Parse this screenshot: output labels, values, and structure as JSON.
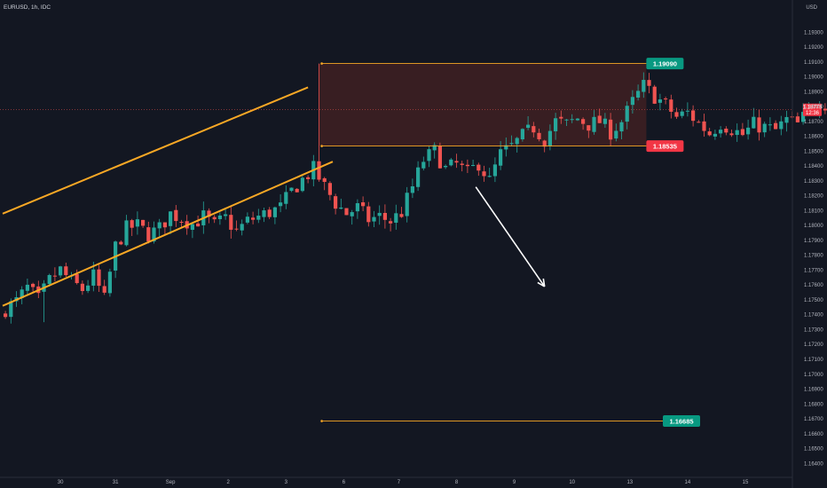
{
  "colors": {
    "background": "#131722",
    "up": "#26a69a",
    "down": "#ef5350",
    "orange": "#f9a825",
    "zone_fill": "#3a1f23",
    "green_tag": "#089981",
    "red_tag": "#f23645",
    "arrow": "#ffffff",
    "axis_text": "#b2b5be"
  },
  "header": {
    "symbol": "EURUSD, 1h, IDC",
    "currency": "USD"
  },
  "chart_data": {
    "type": "candlestick",
    "symbol": "EURUSD",
    "interval": "1h",
    "ylim": [
      1.1633,
      1.1941
    ],
    "y_ticks": [
      "1.19300",
      "1.19200",
      "1.19100",
      "1.19000",
      "1.18900",
      "1.18800",
      "1.18700",
      "1.18600",
      "1.18500",
      "1.18400",
      "1.18300",
      "1.18200",
      "1.18100",
      "1.18000",
      "1.17900",
      "1.17800",
      "1.17700",
      "1.17600",
      "1.17500",
      "1.17400",
      "1.17300",
      "1.17200",
      "1.17100",
      "1.17000",
      "1.16900",
      "1.16800",
      "1.16700",
      "1.16600",
      "1.16500",
      "1.16400"
    ],
    "x_ticks": [
      "30",
      "31",
      "Sep",
      "2",
      "3",
      "6",
      "7",
      "8",
      "9",
      "10",
      "13",
      "14",
      "15"
    ],
    "x_tick_bars": [
      10.5,
      20.5,
      30.5,
      41,
      51.5,
      62,
      72,
      82.5,
      93,
      103.5,
      114,
      124.5,
      135
    ],
    "bars_visible": 150,
    "closes": [
      1.1744,
      1.1749,
      1.1758,
      1.175,
      1.1763,
      1.177,
      1.1762,
      1.1757,
      1.1766,
      1.175,
      1.1786,
      1.1798,
      1.18,
      1.1794,
      1.1798,
      1.1808,
      1.1805,
      1.1801,
      1.1806,
      1.18,
      1.1805,
      1.1796,
      1.1803,
      1.1806,
      1.1809,
      1.1812,
      1.1823,
      1.1831,
      1.1838,
      1.1826,
      1.1815,
      1.1808,
      1.1812,
      1.1804,
      1.1806,
      1.1803,
      1.1809,
      1.1826,
      1.1844,
      1.185,
      1.1838,
      1.1841,
      1.1835,
      1.1842,
      1.183,
      1.1848,
      1.1853,
      1.186,
      1.1866,
      1.1858,
      1.187,
      1.1868,
      1.1872,
      1.1868,
      1.187,
      1.1863,
      1.187,
      1.1883,
      1.1894,
      1.1887,
      1.1881,
      1.1873,
      1.1876,
      1.1869,
      1.1862,
      1.1869,
      1.1865,
      1.1861,
      1.1868,
      1.1866,
      1.1864,
      1.1871,
      1.1868,
      1.1877,
      1.1884,
      1.188,
      1.1878
    ],
    "zone": {
      "top": 1.1909,
      "bottom": 1.18535,
      "start_bar": 57,
      "end_bar": 117
    },
    "levels": [
      {
        "price": 1.1909,
        "label": "1.19090",
        "start_bar": 58,
        "end_bar": 117,
        "tag": "green"
      },
      {
        "price": 1.18535,
        "label": "1.18535",
        "start_bar": 58,
        "end_bar": 117,
        "tag": "red"
      },
      {
        "price": 1.16685,
        "label": "1.16685",
        "start_bar": 58,
        "end_bar": 120,
        "tag": "green"
      }
    ],
    "channel": {
      "upper": {
        "x1_bar": 0,
        "y1": 1.1808,
        "x2_bar": 55.5,
        "y2": 1.1893
      },
      "lower": {
        "x1_bar": 0,
        "y1": 1.1746,
        "x2_bar": 60,
        "y2": 1.1843
      }
    },
    "arrow": {
      "x1_bar": 86,
      "y1": 1.1826,
      "x2_bar": 98.5,
      "y2": 1.1759
    },
    "current_price": {
      "price": "1.18779",
      "countdown": "12:36"
    }
  }
}
